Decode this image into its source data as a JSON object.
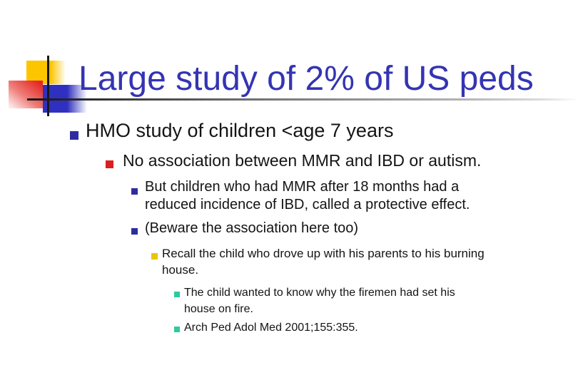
{
  "slide": {
    "title": "Large study of 2% of US peds",
    "title_color": "#3434b2",
    "body_text_color": "#141414",
    "bullets": [
      {
        "level": 1,
        "bullet_color": "#2d2d9e",
        "text": "HMO study of children <age 7 years"
      },
      {
        "level": 2,
        "bullet_color": "#da1f1f",
        "text": "No association between MMR and IBD or autism."
      },
      {
        "level": 3,
        "bullet_color": "#2d2d9e",
        "text": "But children who had MMR after 18 months had a\nreduced incidence of IBD, called a protective effect."
      },
      {
        "level": 3,
        "bullet_color": "#2d2d9e",
        "text": "(Beware the association here too)"
      },
      {
        "level": 4,
        "bullet_color": "#ecc500",
        "text": "Recall the child who drove up with his parents to his burning\nhouse."
      },
      {
        "level": 5,
        "bullet_color": "#2fc89f",
        "text": "The child wanted to know why the firemen had set his\nhouse on fire."
      },
      {
        "level": 5,
        "bullet_color": "#2fc89f",
        "text": "Arch Ped Adol Med 2001;155:355."
      }
    ],
    "decoration": {
      "yellow_square": "#fdc500",
      "red_square_gradient": [
        "#e62621",
        "#fdf0ef"
      ],
      "blue_square": "#3030c0",
      "vertical_line": "#191919",
      "horizontal_line_gradient": [
        "#151515",
        "#ffffff"
      ]
    }
  }
}
